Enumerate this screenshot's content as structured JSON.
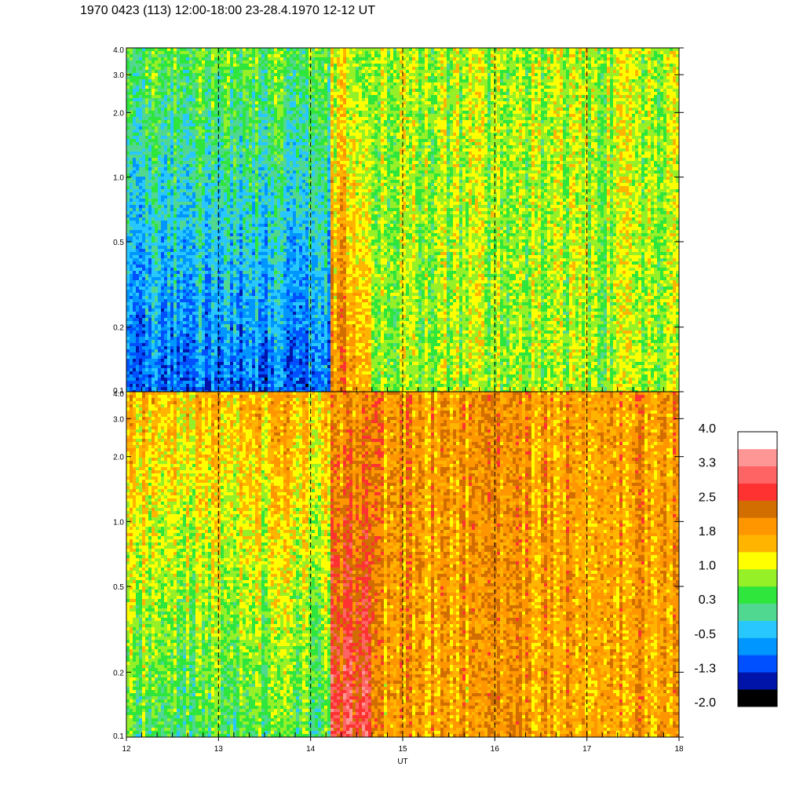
{
  "title": "1970 0423 (113) 12:00-18:00 23-28.4.1970  12-12 UT",
  "chart_data": {
    "type": "heatmap",
    "xlabel": "UT",
    "x_range": [
      12,
      18
    ],
    "x_ticks": [
      "12",
      "13",
      "14",
      "15",
      "16",
      "17",
      "18"
    ],
    "x_ticks_values": [
      12,
      13,
      14,
      15,
      16,
      17,
      18
    ],
    "event_markers_ut": [
      13,
      14,
      15,
      16,
      17
    ],
    "y_scale": "log",
    "y_range": [
      0.1,
      4.0
    ],
    "y_ticks": [
      "0.1",
      "0.2",
      "0.5",
      "1.0",
      "2.0",
      "3.0",
      "4.0"
    ],
    "y_ticks_values": [
      0.1,
      0.2,
      0.5,
      1.0,
      2.0,
      3.0,
      4.0
    ],
    "panels": [
      {
        "segments": [
          {
            "ut_range": [
              12.0,
              14.2
            ],
            "low_level": -0.9,
            "high_level": 0.6
          },
          {
            "ut_range": [
              14.2,
              14.65
            ],
            "low_level": 2.0,
            "high_level": 1.0
          },
          {
            "ut_range": [
              14.65,
              18.0
            ],
            "low_level": 0.8,
            "high_level": 0.9
          }
        ]
      },
      {
        "segments": [
          {
            "ut_range": [
              12.0,
              14.2
            ],
            "low_level": 0.4,
            "high_level": 1.6
          },
          {
            "ut_range": [
              14.2,
              14.65
            ],
            "low_level": 2.8,
            "high_level": 1.9
          },
          {
            "ut_range": [
              14.65,
              18.0
            ],
            "low_level": 1.8,
            "high_level": 1.9
          }
        ]
      }
    ],
    "colorbar": {
      "labels": [
        "4.0",
        "3.3",
        "2.5",
        "1.8",
        "1.0",
        "0.3",
        "-0.5",
        "-1.3",
        "-2.0"
      ],
      "levels_min": -2.0,
      "levels_max": 4.0,
      "colors": [
        "#000000",
        "#0014aa",
        "#0050ff",
        "#0096ff",
        "#28c8ff",
        "#50d890",
        "#2ee63c",
        "#96f028",
        "#ffff00",
        "#ffb400",
        "#ff9600",
        "#d26e00",
        "#ff3232",
        "#ff6464",
        "#ff9696",
        "#ffffff"
      ]
    }
  }
}
